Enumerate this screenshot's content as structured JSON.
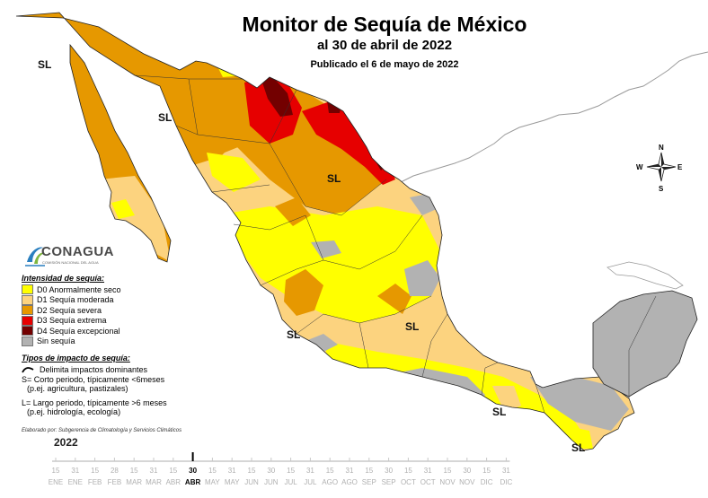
{
  "header": {
    "title": "Monitor de Sequía de México",
    "subtitle": "al 30 de abril de 2022",
    "published": "Publicado el 6 de mayo de 2022"
  },
  "logo": {
    "name": "CONAGUA",
    "tagline": "COMISIÓN NACIONAL DEL AGUA"
  },
  "legend": {
    "title": "Intensidad de sequía:",
    "items": [
      {
        "label": "D0 Anormalmente seco",
        "color": "#ffff00"
      },
      {
        "label": "D1 Sequía moderada",
        "color": "#fcd37f"
      },
      {
        "label": "D2 Sequía severa",
        "color": "#e69800"
      },
      {
        "label": "D3 Sequía extrema",
        "color": "#e60000"
      },
      {
        "label": "D4 Sequía excepcional",
        "color": "#730000"
      },
      {
        "label": "Sin sequía",
        "color": "#b2b2b2"
      }
    ]
  },
  "impact": {
    "title": "Tipos de impacto de sequía:",
    "delimit": "Delimita impactos dominantes",
    "short_1": "S= Corto periodo, típicamente <6meses",
    "short_2": "(p.ej. agricultura, pastizales)",
    "long_1": "L= Largo periodo, típicamente >6 meses",
    "long_2": "(p.ej. hidrología, ecología)"
  },
  "credit": "Elaborado por: Subgerencia de Climatología y Servicios Climáticos",
  "map_labels": [
    "SL",
    "SL",
    "SL",
    "SL",
    "SL",
    "SL"
  ],
  "compass": {
    "n": "N",
    "s": "S",
    "e": "E",
    "w": "W"
  },
  "timeline": {
    "year": "2022",
    "days": [
      "15",
      "31",
      "15",
      "28",
      "15",
      "31",
      "15",
      "30",
      "15",
      "31",
      "15",
      "30",
      "15",
      "31",
      "15",
      "31",
      "15",
      "30",
      "15",
      "31",
      "15",
      "30",
      "15",
      "31"
    ],
    "months": [
      "ENE",
      "ENE",
      "FEB",
      "FEB",
      "MAR",
      "MAR",
      "ABR",
      "ABR",
      "MAY",
      "MAY",
      "JUN",
      "JUN",
      "JUL",
      "JUL",
      "AGO",
      "AGO",
      "SEP",
      "SEP",
      "OCT",
      "OCT",
      "NOV",
      "NOV",
      "DIC",
      "DIC"
    ],
    "current_index": 7
  }
}
